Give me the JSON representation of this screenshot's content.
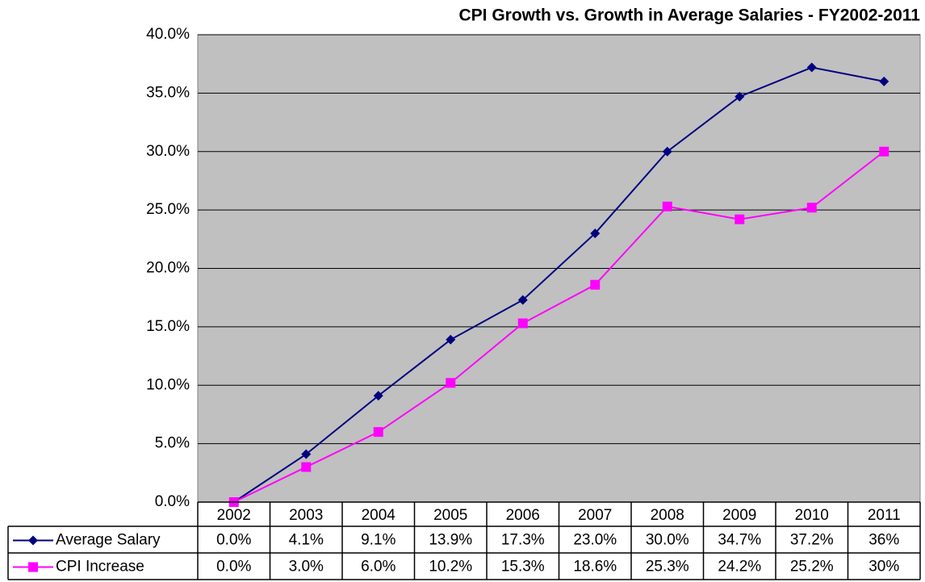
{
  "chart_data": {
    "type": "line",
    "title": "CPI Growth vs. Growth in Average Salaries - FY2002-2011",
    "categories": [
      "2002",
      "2003",
      "2004",
      "2005",
      "2006",
      "2007",
      "2008",
      "2009",
      "2010",
      "2011"
    ],
    "series": [
      {
        "name": "Average Salary",
        "color": "#000080",
        "marker": "diamond",
        "values": [
          0.0,
          4.1,
          9.1,
          13.9,
          17.3,
          23.0,
          30.0,
          34.7,
          37.2,
          36
        ],
        "value_labels": [
          "0.0%",
          "4.1%",
          "9.1%",
          "13.9%",
          "17.3%",
          "23.0%",
          "30.0%",
          "34.7%",
          "37.2%",
          "36%"
        ]
      },
      {
        "name": "CPI Increase",
        "color": "#ff00ff",
        "marker": "square",
        "values": [
          0.0,
          3.0,
          6.0,
          10.2,
          15.3,
          18.6,
          25.3,
          24.2,
          25.2,
          30
        ],
        "value_labels": [
          "0.0%",
          "3.0%",
          "6.0%",
          "10.2%",
          "15.3%",
          "18.6%",
          "25.3%",
          "24.2%",
          "25.2%",
          "30%"
        ]
      }
    ],
    "ylim": [
      0,
      40
    ],
    "yticks": [
      {
        "value": 0,
        "label": "0.0%"
      },
      {
        "value": 5,
        "label": "5.0%"
      },
      {
        "value": 10,
        "label": "10.0%"
      },
      {
        "value": 15,
        "label": "15.0%"
      },
      {
        "value": 20,
        "label": "20.0%"
      },
      {
        "value": 25,
        "label": "25.0%"
      },
      {
        "value": 30,
        "label": "30.0%"
      },
      {
        "value": 35,
        "label": "35.0%"
      },
      {
        "value": 40,
        "label": "40.0%"
      }
    ],
    "grid": true,
    "plot_background": "#c0c0c0"
  }
}
